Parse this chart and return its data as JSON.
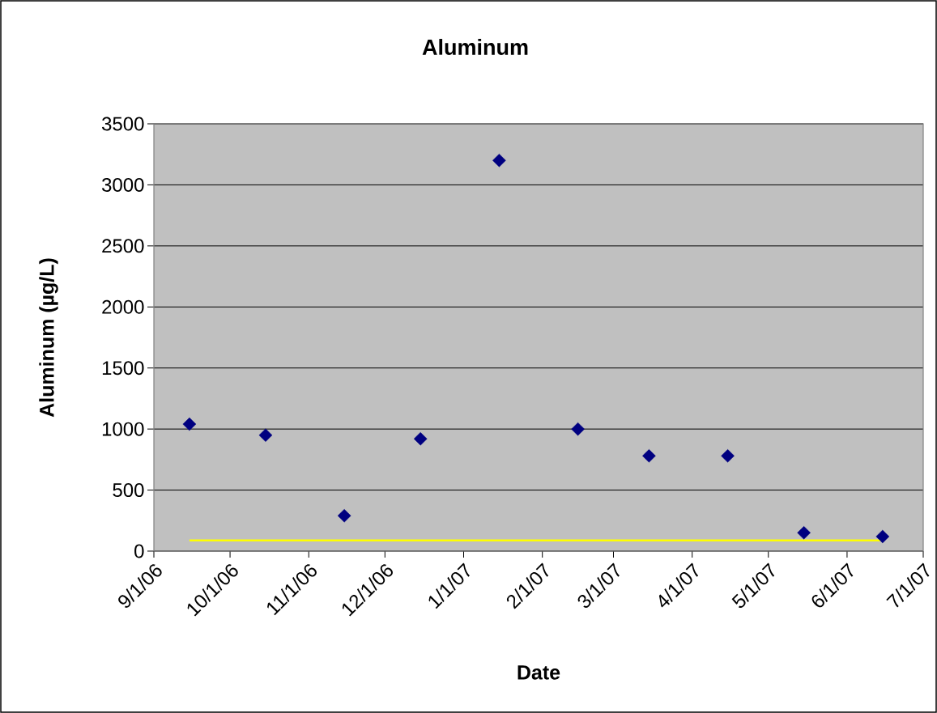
{
  "chart_data": {
    "type": "scatter",
    "title": "Aluminum",
    "xlabel": "Date",
    "ylabel": "Aluminum (µg/L)",
    "xlim": [
      "2006-09-01",
      "2007-07-01"
    ],
    "xticks": [
      {
        "value": "2006-09-01",
        "label": "9/1/06"
      },
      {
        "value": "2006-10-01",
        "label": "10/1/06"
      },
      {
        "value": "2006-11-01",
        "label": "11/1/06"
      },
      {
        "value": "2006-12-01",
        "label": "12/1/06"
      },
      {
        "value": "2007-01-01",
        "label": "1/1/07"
      },
      {
        "value": "2007-02-01",
        "label": "2/1/07"
      },
      {
        "value": "2007-03-01",
        "label": "3/1/07"
      },
      {
        "value": "2007-04-01",
        "label": "4/1/07"
      },
      {
        "value": "2007-05-01",
        "label": "5/1/07"
      },
      {
        "value": "2007-06-01",
        "label": "6/1/07"
      },
      {
        "value": "2007-07-01",
        "label": "7/1/07"
      }
    ],
    "ylim": [
      0,
      3500
    ],
    "yticks": [
      0,
      500,
      1000,
      1500,
      2000,
      2500,
      3000,
      3500
    ],
    "grid": "y",
    "marker": "diamond",
    "series": [
      {
        "color": "#000080",
        "x": [
          "2006-09-15",
          "2006-10-15",
          "2006-11-15",
          "2006-12-15",
          "2007-01-15",
          "2007-02-15",
          "2007-03-15",
          "2007-04-15",
          "2007-05-15",
          "2007-06-15"
        ],
        "values": [
          1040,
          950,
          290,
          920,
          3200,
          1000,
          780,
          780,
          150,
          120
        ]
      },
      {
        "type": "line",
        "color": "#ffff00",
        "marker": "none",
        "line_style": "solid",
        "x": [
          "2006-09-15",
          "2007-06-15"
        ],
        "values": [
          87,
          87
        ]
      }
    ]
  }
}
